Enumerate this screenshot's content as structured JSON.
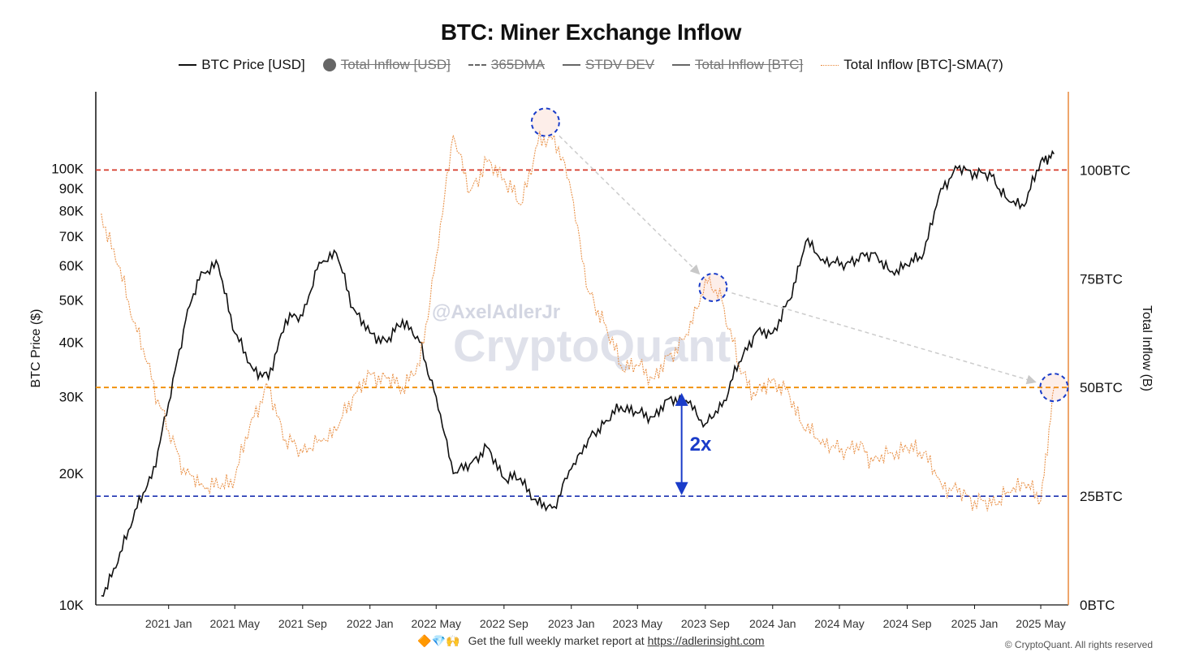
{
  "chart_data": {
    "type": "line",
    "title": "BTC: Miner Exchange Inflow",
    "ylabel": "BTC Price ($)",
    "y2label": "Total Inflow (B)",
    "y_scale": "log",
    "ylim": [
      10000,
      150000
    ],
    "y2lim": [
      0,
      118
    ],
    "legend_placement": "top-center",
    "grid": false,
    "x_tick_labels": [
      "2021 Jan",
      "2021 May",
      "2021 Sep",
      "2022 Jan",
      "2022 May",
      "2022 Sep",
      "2023 Jan",
      "2023 May",
      "2023 Sep",
      "2024 Jan",
      "2024 May",
      "2024 Sep",
      "2025 Jan",
      "2025 May"
    ],
    "y_tick_labels": [
      "10K",
      "20K",
      "30K",
      "40K",
      "50K",
      "60K",
      "70K",
      "80K",
      "90K",
      "100K"
    ],
    "y_tick_values": [
      10000,
      20000,
      30000,
      40000,
      50000,
      60000,
      70000,
      80000,
      90000,
      100000
    ],
    "y2_tick_labels": [
      "0BTC",
      "25BTC",
      "50BTC",
      "75BTC",
      "100BTC"
    ],
    "y2_tick_values": [
      0,
      25,
      50,
      75,
      100
    ],
    "series": [
      {
        "name": "BTC Price [USD]",
        "color": "#111111",
        "axis": "left",
        "x": [
          "2020-09-01",
          "2020-10-01",
          "2020-11-01",
          "2020-12-01",
          "2021-01-01",
          "2021-02-01",
          "2021-03-01",
          "2021-04-01",
          "2021-05-01",
          "2021-06-01",
          "2021-07-01",
          "2021-08-01",
          "2021-09-01",
          "2021-10-01",
          "2021-11-01",
          "2021-12-01",
          "2022-01-01",
          "2022-02-01",
          "2022-03-01",
          "2022-04-01",
          "2022-05-01",
          "2022-06-01",
          "2022-07-01",
          "2022-08-01",
          "2022-09-01",
          "2022-10-01",
          "2022-11-01",
          "2022-12-01",
          "2023-01-01",
          "2023-02-01",
          "2023-03-01",
          "2023-04-01",
          "2023-05-01",
          "2023-06-01",
          "2023-07-01",
          "2023-08-01",
          "2023-09-01",
          "2023-10-01",
          "2023-11-01",
          "2023-12-01",
          "2024-01-01",
          "2024-02-01",
          "2024-03-01",
          "2024-04-01",
          "2024-05-01",
          "2024-06-01",
          "2024-07-01",
          "2024-08-01",
          "2024-09-01",
          "2024-10-01",
          "2024-11-01",
          "2024-12-01",
          "2025-01-01",
          "2025-02-01",
          "2025-03-01",
          "2025-04-01",
          "2025-05-01",
          "2025-05-25"
        ],
        "values": [
          10500,
          12500,
          16500,
          19500,
          29000,
          45000,
          58000,
          60000,
          42000,
          35000,
          33000,
          45000,
          46000,
          61000,
          64000,
          48000,
          42000,
          40000,
          45000,
          40000,
          30000,
          20000,
          21000,
          23000,
          19500,
          19500,
          17000,
          16800,
          20500,
          24000,
          26000,
          28500,
          27500,
          27000,
          30000,
          29000,
          26000,
          28500,
          36000,
          42000,
          42000,
          50000,
          68000,
          62000,
          60000,
          62000,
          64000,
          58000,
          60000,
          64000,
          90000,
          100000,
          98000,
          96000,
          85000,
          82000,
          104000,
          108000
        ]
      },
      {
        "name": "Total Inflow [BTC]-SMA(7)",
        "color": "#e8893b",
        "axis": "right",
        "x": [
          "2020-09-01",
          "2020-10-01",
          "2020-11-01",
          "2020-12-01",
          "2021-01-01",
          "2021-02-01",
          "2021-03-01",
          "2021-04-01",
          "2021-05-01",
          "2021-06-01",
          "2021-07-01",
          "2021-08-01",
          "2021-09-01",
          "2021-10-01",
          "2021-11-01",
          "2021-12-01",
          "2022-01-01",
          "2022-02-01",
          "2022-03-01",
          "2022-04-01",
          "2022-05-01",
          "2022-06-01",
          "2022-07-01",
          "2022-08-01",
          "2022-09-01",
          "2022-10-01",
          "2022-11-01",
          "2022-12-01",
          "2023-01-01",
          "2023-02-01",
          "2023-03-01",
          "2023-04-01",
          "2023-05-01",
          "2023-06-01",
          "2023-07-01",
          "2023-08-01",
          "2023-09-01",
          "2023-10-01",
          "2023-11-01",
          "2023-12-01",
          "2024-01-01",
          "2024-02-01",
          "2024-03-01",
          "2024-04-01",
          "2024-05-01",
          "2024-06-01",
          "2024-07-01",
          "2024-08-01",
          "2024-09-01",
          "2024-10-01",
          "2024-11-01",
          "2024-12-01",
          "2025-01-01",
          "2025-02-01",
          "2025-03-01",
          "2025-04-01",
          "2025-05-01",
          "2025-05-25"
        ],
        "values": [
          90,
          78,
          65,
          52,
          40,
          30,
          28,
          27,
          29,
          43,
          50,
          38,
          35,
          38,
          40,
          48,
          53,
          52,
          50,
          55,
          80,
          108,
          95,
          102,
          98,
          92,
          106,
          108,
          95,
          72,
          65,
          55,
          55,
          52,
          58,
          62,
          75,
          70,
          55,
          48,
          52,
          48,
          40,
          38,
          35,
          37,
          33,
          35,
          36,
          35,
          28,
          26,
          24,
          23,
          26,
          28,
          24,
          50
        ]
      }
    ],
    "legend": [
      {
        "label": "BTC Price [USD]",
        "marker": "line",
        "color": "#111111",
        "hidden": false
      },
      {
        "label": "Total Inflow [USD]",
        "marker": "dot",
        "color": "#666666",
        "hidden": true
      },
      {
        "label": "365DMA",
        "marker": "dash",
        "color": "#666666",
        "hidden": true
      },
      {
        "label": "STDV DEV",
        "marker": "line",
        "color": "#666666",
        "hidden": true
      },
      {
        "label": "Total Inflow [BTC]",
        "marker": "line",
        "color": "#666666",
        "hidden": true
      },
      {
        "label": "Total Inflow [BTC]-SMA(7)",
        "marker": "dotted",
        "color": "#e8893b",
        "hidden": false
      }
    ],
    "reference_lines": [
      {
        "axis": "right",
        "value": 100,
        "color": "#d63a2a",
        "style": "dashed"
      },
      {
        "axis": "right",
        "value": 50,
        "color": "#f08c00",
        "style": "dashed"
      },
      {
        "axis": "right",
        "value": 25,
        "color": "#2a3fb5",
        "style": "dashed"
      }
    ],
    "highlight_markers": [
      {
        "x": "2022-11-15",
        "y2": 111
      },
      {
        "x": "2023-09-15",
        "y2": 73
      },
      {
        "x": "2025-05-25",
        "y2": 50
      }
    ],
    "annotations": [
      {
        "text": "2x",
        "color": "#1a3cc9",
        "x": "2023-07-20",
        "from_y2": 48,
        "to_y2": 26
      }
    ]
  },
  "watermark": {
    "handle": "@AxelAdlerJr",
    "brand": "CryptoQuant"
  },
  "footer": {
    "icons": "🔶💎🙌",
    "text": "Get the full weekly market report at",
    "link_text": "https://adlerinsight.com",
    "copyright": "© CryptoQuant. All rights reserved"
  }
}
